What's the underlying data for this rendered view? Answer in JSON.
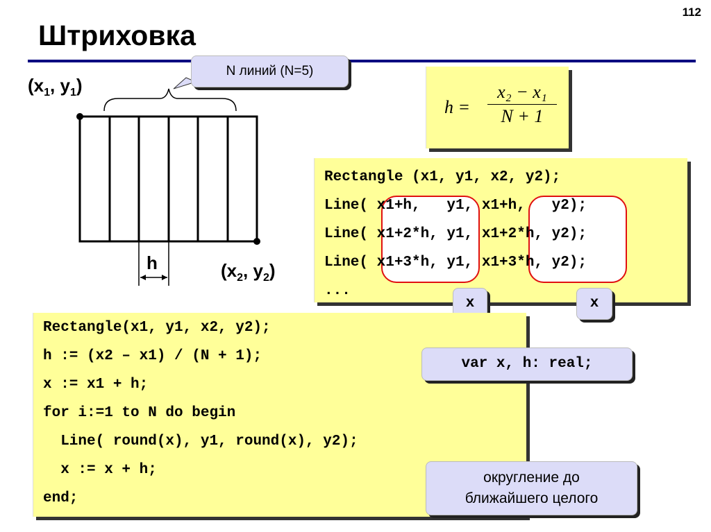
{
  "slide_number": "112",
  "title": "Штриховка",
  "diagram": {
    "top_left_label": {
      "pre": "(x",
      "sub1": "1",
      "mid": ", y",
      "sub2": "1",
      "post": ")"
    },
    "bottom_right_label": {
      "pre": "(x",
      "sub1": "2",
      "mid": ", y",
      "sub2": "2",
      "post": ")"
    },
    "step_label": "h",
    "lines_callout": "N линий (N=5)",
    "line_count": 5
  },
  "formula": {
    "lhs": "h =",
    "numerator": "x₂ − x₁",
    "denominator": "N + 1"
  },
  "code_example": {
    "lines": [
      "Rectangle (x1, y1, x2, y2);",
      "Line( x1+h,   y1, x1+h,   y2);",
      "Line( x1+2*h, y1, x1+2*h, y2);",
      "Line( x1+3*h, y1, x1+3*h, y2);",
      "..."
    ],
    "x_callout_left": "x",
    "x_callout_right": "x"
  },
  "code_program": {
    "lines": [
      "Rectangle(x1, y1, x2, y2);",
      "h := (x2 – x1) / (N + 1);",
      "x := x1 + h;",
      "for i:=1 to N do begin",
      "  Line( round(x), y1, round(x), y2);",
      "  x := x + h;",
      "end;"
    ],
    "var_callout": "var x, h: real;",
    "round_callout": [
      "округление до",
      "ближайшего целого"
    ]
  }
}
